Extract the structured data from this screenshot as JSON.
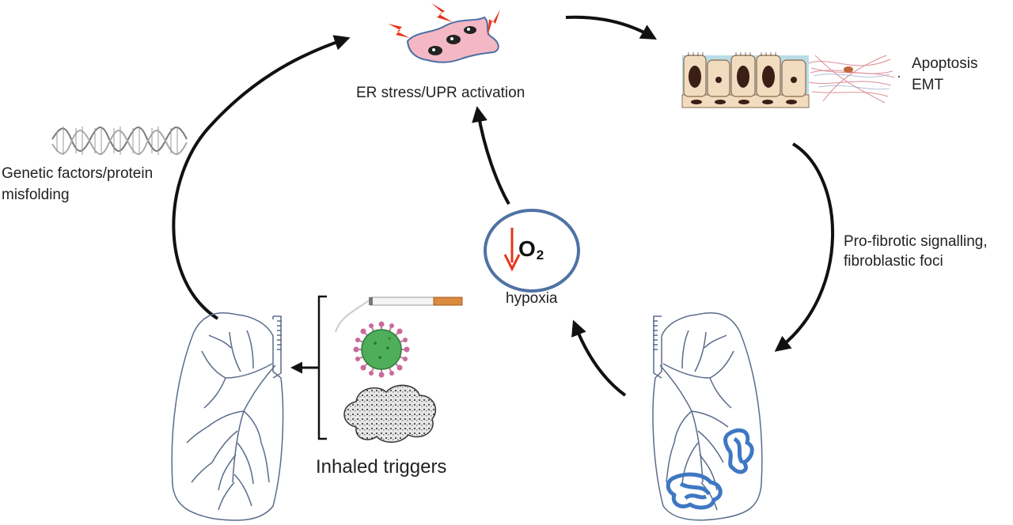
{
  "labels": {
    "er_stress": "ER stress/UPR activation",
    "apoptosis": "Apoptosis",
    "emt": "EMT",
    "genetic_line1": "Genetic factors/protein",
    "genetic_line2": "misfolding",
    "profibrotic_line1": "Pro-fibrotic signalling,",
    "profibrotic_line2": "fibroblastic foci",
    "hypoxia": "hypoxia",
    "o2_symbol": "O",
    "o2_subscript": "2",
    "inhaled_triggers": "Inhaled triggers"
  },
  "colors": {
    "arrow": "#111111",
    "hypoxia_circle": "#4f72a3",
    "down_arrow": "#e8341c",
    "lung_outline": "#5a6c8a",
    "fibrosis": "#3e78c4",
    "cell_body": "#f4b8c4",
    "lightning": "#e8341c"
  }
}
